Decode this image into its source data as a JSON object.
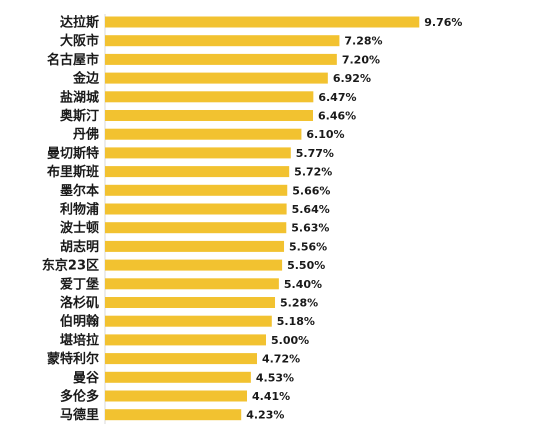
{
  "chart_data": {
    "type": "bar",
    "orientation": "horizontal",
    "categories": [
      "达拉斯",
      "大阪市",
      "名古屋市",
      "金边",
      "盐湖城",
      "奥斯汀",
      "丹佛",
      "曼切斯特",
      "布里斯班",
      "墨尔本",
      "利物浦",
      "波士顿",
      "胡志明",
      "东京23区",
      "爱丁堡",
      "洛杉矶",
      "伯明翰",
      "堪培拉",
      "蒙特利尔",
      "曼谷",
      "多伦多",
      "马德里"
    ],
    "values": [
      9.76,
      7.28,
      7.2,
      6.92,
      6.47,
      6.46,
      6.1,
      5.77,
      5.72,
      5.66,
      5.64,
      5.63,
      5.56,
      5.5,
      5.4,
      5.28,
      5.18,
      5.0,
      4.72,
      4.53,
      4.41,
      4.23
    ],
    "value_labels": [
      "9.76%",
      "7.28%",
      "7.20%",
      "6.92%",
      "6.47%",
      "6.46%",
      "6.10%",
      "5.77%",
      "5.72%",
      "5.66%",
      "5.64%",
      "5.63%",
      "5.56%",
      "5.50%",
      "5.40%",
      "5.28%",
      "5.18%",
      "5.00%",
      "4.72%",
      "4.53%",
      "4.41%",
      "4.23%"
    ],
    "title": "",
    "xlabel": "",
    "ylabel": "",
    "xlim": [
      0,
      10
    ],
    "grid": false,
    "legend": "none",
    "bar_color": "#f2c230"
  }
}
